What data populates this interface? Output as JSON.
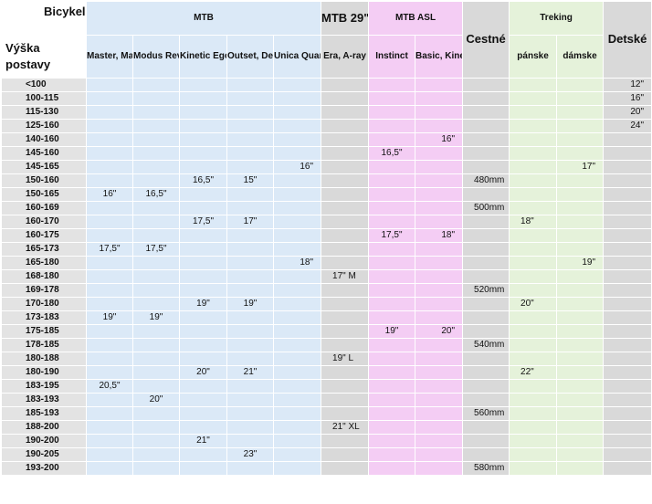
{
  "header": {
    "corner": "Bicykel",
    "row_label": "Výška postavy",
    "groups": {
      "mtb": "MTB",
      "mtb29": "MTB 29\"",
      "mtb_asl": "MTB ASL",
      "cestne": "Cestné",
      "treking": "Treking",
      "detske": "Detské"
    },
    "subcolumns": {
      "mtb_1": "Master, Magnum",
      "mtb_2": "Modus Revolt",
      "mtb_3": "Kinetic Egoist",
      "mtb_4": "Outset, Dexter",
      "mtb_5": "Unica Quanta",
      "mtb29_1": "Era, A-ray",
      "asl_1": "Instinct",
      "asl_2": "Basic, Kinetic, Traction",
      "trek_1": "pánske",
      "trek_2": "dámske"
    }
  },
  "rows": [
    {
      "h": "<100",
      "c": [
        "",
        "",
        "",
        "",
        "",
        "",
        "",
        "",
        "",
        "",
        "",
        "12\""
      ]
    },
    {
      "h": "100-115",
      "c": [
        "",
        "",
        "",
        "",
        "",
        "",
        "",
        "",
        "",
        "",
        "",
        "16\""
      ]
    },
    {
      "h": "115-130",
      "c": [
        "",
        "",
        "",
        "",
        "",
        "",
        "",
        "",
        "",
        "",
        "",
        "20\""
      ]
    },
    {
      "h": "125-160",
      "c": [
        "",
        "",
        "",
        "",
        "",
        "",
        "",
        "",
        "",
        "",
        "",
        "24\""
      ]
    },
    {
      "h": "140-160",
      "c": [
        "",
        "",
        "",
        "",
        "",
        "",
        "",
        "16\"",
        "",
        "",
        "",
        ""
      ]
    },
    {
      "h": "145-160",
      "c": [
        "",
        "",
        "",
        "",
        "",
        "",
        "16,5\"",
        "",
        "",
        "",
        "",
        ""
      ]
    },
    {
      "h": "145-165",
      "c": [
        "",
        "",
        "",
        "",
        "16\"",
        "",
        "",
        "",
        "",
        "",
        "17\"",
        ""
      ]
    },
    {
      "h": "150-160",
      "c": [
        "",
        "",
        "16,5\"",
        "15\"",
        "",
        "",
        "",
        "",
        "480mm",
        "",
        "",
        ""
      ]
    },
    {
      "h": "150-165",
      "c": [
        "16\"",
        "16,5\"",
        "",
        "",
        "",
        "",
        "",
        "",
        "",
        "",
        "",
        ""
      ]
    },
    {
      "h": "160-169",
      "c": [
        "",
        "",
        "",
        "",
        "",
        "",
        "",
        "",
        "500mm",
        "",
        "",
        ""
      ]
    },
    {
      "h": "160-170",
      "c": [
        "",
        "",
        "17,5\"",
        "17\"",
        "",
        "",
        "",
        "",
        "",
        "18\"",
        "",
        ""
      ]
    },
    {
      "h": "160-175",
      "c": [
        "",
        "",
        "",
        "",
        "",
        "",
        "17,5\"",
        "18\"",
        "",
        "",
        "",
        ""
      ]
    },
    {
      "h": "165-173",
      "c": [
        "17,5\"",
        "17,5\"",
        "",
        "",
        "",
        "",
        "",
        "",
        "",
        "",
        "",
        ""
      ]
    },
    {
      "h": "165-180",
      "c": [
        "",
        "",
        "",
        "",
        "18\"",
        "",
        "",
        "",
        "",
        "",
        "19\"",
        ""
      ]
    },
    {
      "h": "168-180",
      "c": [
        "",
        "",
        "",
        "",
        "",
        "17\" M",
        "",
        "",
        "",
        "",
        "",
        ""
      ]
    },
    {
      "h": "169-178",
      "c": [
        "",
        "",
        "",
        "",
        "",
        "",
        "",
        "",
        "520mm",
        "",
        "",
        ""
      ]
    },
    {
      "h": "170-180",
      "c": [
        "",
        "",
        "19\"",
        "19\"",
        "",
        "",
        "",
        "",
        "",
        "20\"",
        "",
        ""
      ]
    },
    {
      "h": "173-183",
      "c": [
        "19\"",
        "19\"",
        "",
        "",
        "",
        "",
        "",
        "",
        "",
        "",
        "",
        ""
      ]
    },
    {
      "h": "175-185",
      "c": [
        "",
        "",
        "",
        "",
        "",
        "",
        "19\"",
        "20\"",
        "",
        "",
        "",
        ""
      ]
    },
    {
      "h": "178-185",
      "c": [
        "",
        "",
        "",
        "",
        "",
        "",
        "",
        "",
        "540mm",
        "",
        "",
        ""
      ]
    },
    {
      "h": "180-188",
      "c": [
        "",
        "",
        "",
        "",
        "",
        "19\" L",
        "",
        "",
        "",
        "",
        "",
        ""
      ]
    },
    {
      "h": "180-190",
      "c": [
        "",
        "",
        "20\"",
        "21\"",
        "",
        "",
        "",
        "",
        "",
        "22\"",
        "",
        ""
      ]
    },
    {
      "h": "183-195",
      "c": [
        "20,5\"",
        "",
        "",
        "",
        "",
        "",
        "",
        "",
        "",
        "",
        "",
        ""
      ]
    },
    {
      "h": "183-193",
      "c": [
        "",
        "20\"",
        "",
        "",
        "",
        "",
        "",
        "",
        "",
        "",
        "",
        ""
      ]
    },
    {
      "h": "185-193",
      "c": [
        "",
        "",
        "",
        "",
        "",
        "",
        "",
        "",
        "560mm",
        "",
        "",
        ""
      ]
    },
    {
      "h": "188-200",
      "c": [
        "",
        "",
        "",
        "",
        "",
        "21\" XL",
        "",
        "",
        "",
        "",
        "",
        ""
      ]
    },
    {
      "h": "190-200",
      "c": [
        "",
        "",
        "21\"",
        "",
        "",
        "",
        "",
        "",
        "",
        "",
        "",
        ""
      ]
    },
    {
      "h": "190-205",
      "c": [
        "",
        "",
        "",
        "23\"",
        "",
        "",
        "",
        "",
        "",
        "",
        "",
        ""
      ]
    },
    {
      "h": "193-200",
      "c": [
        "",
        "",
        "",
        "",
        "",
        "",
        "",
        "",
        "580mm",
        "",
        "",
        ""
      ]
    }
  ]
}
